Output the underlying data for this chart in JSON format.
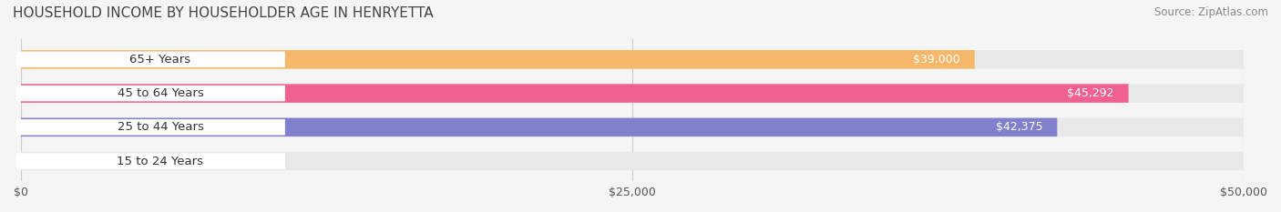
{
  "title": "HOUSEHOLD INCOME BY HOUSEHOLDER AGE IN HENRYETTA",
  "source": "Source: ZipAtlas.com",
  "categories": [
    "15 to 24 Years",
    "25 to 44 Years",
    "45 to 64 Years",
    "65+ Years"
  ],
  "values": [
    0,
    42375,
    45292,
    39000
  ],
  "bar_colors": [
    "#5ecfce",
    "#8080cc",
    "#f06090",
    "#f5b86a"
  ],
  "label_colors": [
    "#555555",
    "#ffffff",
    "#ffffff",
    "#ffffff"
  ],
  "xlim": [
    0,
    50000
  ],
  "xticks": [
    0,
    25000,
    50000
  ],
  "xticklabels": [
    "$0",
    "$25,000",
    "$50,000"
  ],
  "bg_color": "#f5f5f5",
  "bar_bg_color": "#e8e8e8",
  "bar_height": 0.55,
  "title_fontsize": 11,
  "label_fontsize": 9.5,
  "value_fontsize": 9,
  "source_fontsize": 8.5
}
